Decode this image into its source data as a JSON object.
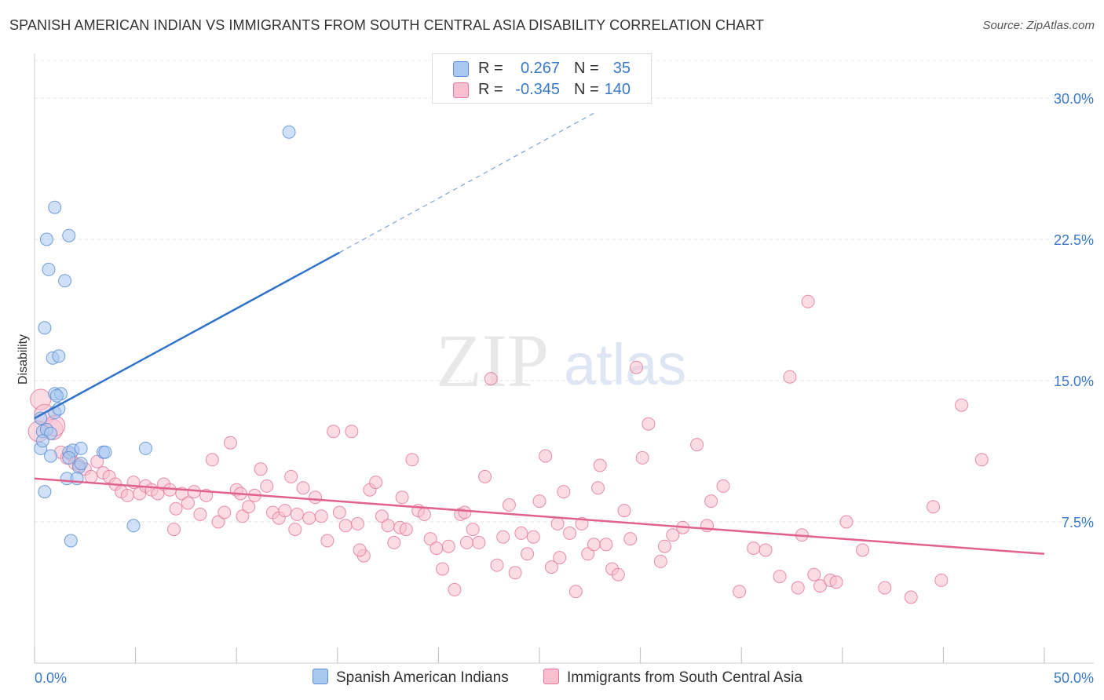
{
  "title": "SPANISH AMERICAN INDIAN VS IMMIGRANTS FROM SOUTH CENTRAL ASIA DISABILITY CORRELATION CHART",
  "source": "Source: ZipAtlas.com",
  "watermark": {
    "zip": "ZIP",
    "atlas": "atlas"
  },
  "legend": {
    "rows": [
      {
        "r_label": "R =",
        "r_value": "0.267",
        "n_label": "N =",
        "n_value": "35",
        "color": "#a9c8f0",
        "border": "#5b8fd6"
      },
      {
        "r_label": "R =",
        "r_value": "-0.345",
        "n_label": "N =",
        "n_value": "140",
        "color": "#f7bfd0",
        "border": "#e5799c"
      }
    ]
  },
  "bottom_legend": [
    {
      "label": "Spanish American Indians",
      "color": "#a9c8f0",
      "border": "#5b8fd6"
    },
    {
      "label": "Immigrants from South Central Asia",
      "color": "#f7bfd0",
      "border": "#e5799c"
    }
  ],
  "chart_data": {
    "type": "scatter",
    "title": "SPANISH AMERICAN INDIAN VS IMMIGRANTS FROM SOUTH CENTRAL ASIA DISABILITY CORRELATION CHART",
    "xlabel": "",
    "ylabel": "Disability",
    "xlim": [
      0,
      50
    ],
    "ylim": [
      0,
      32
    ],
    "x_tick_labels": [
      "0.0%",
      "50.0%"
    ],
    "y_ticks": [
      7.5,
      15.0,
      22.5,
      30.0
    ],
    "y_tick_labels": [
      "7.5%",
      "15.0%",
      "22.5%",
      "30.0%"
    ],
    "grid": true,
    "legend_position": "top-center",
    "series": [
      {
        "name": "Spanish American Indians",
        "color": "#5b8fd6",
        "fill": "#a9c8f0",
        "trend": {
          "x": [
            0,
            15.1
          ],
          "y": [
            13.0,
            21.8
          ],
          "dashed_extension_to": [
            27.7,
            29.2
          ]
        },
        "points": [
          [
            12.6,
            28.2
          ],
          [
            1.0,
            24.2
          ],
          [
            0.6,
            22.5
          ],
          [
            1.7,
            22.7
          ],
          [
            0.7,
            20.9
          ],
          [
            1.5,
            20.3
          ],
          [
            0.5,
            17.8
          ],
          [
            0.9,
            16.2
          ],
          [
            1.2,
            16.3
          ],
          [
            1.0,
            14.3
          ],
          [
            1.3,
            14.3
          ],
          [
            1.1,
            14.2
          ],
          [
            0.3,
            13.0
          ],
          [
            1.0,
            13.3
          ],
          [
            1.2,
            13.5
          ],
          [
            0.4,
            12.3
          ],
          [
            0.6,
            12.4
          ],
          [
            0.8,
            12.2
          ],
          [
            0.3,
            11.4
          ],
          [
            0.8,
            11.0
          ],
          [
            1.7,
            11.2
          ],
          [
            1.9,
            11.3
          ],
          [
            2.3,
            11.4
          ],
          [
            3.4,
            11.2
          ],
          [
            3.5,
            11.2
          ],
          [
            5.5,
            11.4
          ],
          [
            1.7,
            10.9
          ],
          [
            2.2,
            10.4
          ],
          [
            2.3,
            10.6
          ],
          [
            1.6,
            9.8
          ],
          [
            2.1,
            9.8
          ],
          [
            0.5,
            9.1
          ],
          [
            4.9,
            7.3
          ],
          [
            1.8,
            6.5
          ],
          [
            0.4,
            11.8
          ]
        ]
      },
      {
        "name": "Immigrants from South Central Asia",
        "color": "#e5799c",
        "fill": "#f7bfd0",
        "trend": {
          "x": [
            0,
            50
          ],
          "y": [
            9.8,
            5.8
          ]
        },
        "points": [
          [
            0.3,
            14.0
          ],
          [
            0.5,
            13.2
          ],
          [
            0.9,
            12.4
          ],
          [
            0.2,
            12.3
          ],
          [
            1.0,
            12.6
          ],
          [
            1.3,
            11.2
          ],
          [
            1.6,
            10.9
          ],
          [
            1.8,
            11.1
          ],
          [
            2.0,
            10.6
          ],
          [
            2.2,
            10.5
          ],
          [
            2.5,
            10.3
          ],
          [
            2.8,
            9.9
          ],
          [
            3.1,
            10.7
          ],
          [
            3.4,
            10.1
          ],
          [
            3.7,
            9.9
          ],
          [
            4.0,
            9.5
          ],
          [
            4.3,
            9.1
          ],
          [
            4.6,
            8.9
          ],
          [
            4.9,
            9.6
          ],
          [
            5.2,
            9.0
          ],
          [
            5.5,
            9.4
          ],
          [
            5.8,
            9.2
          ],
          [
            6.1,
            9.0
          ],
          [
            6.4,
            9.5
          ],
          [
            6.7,
            9.2
          ],
          [
            7.0,
            8.2
          ],
          [
            7.3,
            9.0
          ],
          [
            7.6,
            8.5
          ],
          [
            7.9,
            9.1
          ],
          [
            8.2,
            7.9
          ],
          [
            8.5,
            8.9
          ],
          [
            8.8,
            10.8
          ],
          [
            9.1,
            7.5
          ],
          [
            9.4,
            8.0
          ],
          [
            9.7,
            11.7
          ],
          [
            10.0,
            9.2
          ],
          [
            10.3,
            7.8
          ],
          [
            10.6,
            8.3
          ],
          [
            10.9,
            8.9
          ],
          [
            11.2,
            10.3
          ],
          [
            11.5,
            9.4
          ],
          [
            11.8,
            8.0
          ],
          [
            12.1,
            7.7
          ],
          [
            12.4,
            8.1
          ],
          [
            12.7,
            9.9
          ],
          [
            13.0,
            7.9
          ],
          [
            13.3,
            9.3
          ],
          [
            13.6,
            7.7
          ],
          [
            13.9,
            8.8
          ],
          [
            14.2,
            7.8
          ],
          [
            14.5,
            6.5
          ],
          [
            14.8,
            12.3
          ],
          [
            15.1,
            8.0
          ],
          [
            15.4,
            7.3
          ],
          [
            15.7,
            12.3
          ],
          [
            16.0,
            7.4
          ],
          [
            16.3,
            5.7
          ],
          [
            16.6,
            9.2
          ],
          [
            16.9,
            9.6
          ],
          [
            17.2,
            7.8
          ],
          [
            17.5,
            7.3
          ],
          [
            17.8,
            6.4
          ],
          [
            18.1,
            7.2
          ],
          [
            18.4,
            7.1
          ],
          [
            18.7,
            10.8
          ],
          [
            19.0,
            8.1
          ],
          [
            19.3,
            7.9
          ],
          [
            19.6,
            6.6
          ],
          [
            19.9,
            6.1
          ],
          [
            20.2,
            5.0
          ],
          [
            20.5,
            6.2
          ],
          [
            20.8,
            3.9
          ],
          [
            21.1,
            7.9
          ],
          [
            21.4,
            6.4
          ],
          [
            21.7,
            7.1
          ],
          [
            22.0,
            6.4
          ],
          [
            22.3,
            9.9
          ],
          [
            22.6,
            15.1
          ],
          [
            22.9,
            5.2
          ],
          [
            23.2,
            6.7
          ],
          [
            23.5,
            8.4
          ],
          [
            23.8,
            4.8
          ],
          [
            24.1,
            6.9
          ],
          [
            24.4,
            5.8
          ],
          [
            24.7,
            6.7
          ],
          [
            25.0,
            8.6
          ],
          [
            25.3,
            11.0
          ],
          [
            25.6,
            5.1
          ],
          [
            25.9,
            7.4
          ],
          [
            26.2,
            9.1
          ],
          [
            26.5,
            6.9
          ],
          [
            26.8,
            3.8
          ],
          [
            27.1,
            7.4
          ],
          [
            27.4,
            5.8
          ],
          [
            27.7,
            6.3
          ],
          [
            28.0,
            10.5
          ],
          [
            28.3,
            6.3
          ],
          [
            28.6,
            5.0
          ],
          [
            28.9,
            4.7
          ],
          [
            29.2,
            8.1
          ],
          [
            29.5,
            6.6
          ],
          [
            29.8,
            15.7
          ],
          [
            30.1,
            10.9
          ],
          [
            30.4,
            12.7
          ],
          [
            31.2,
            6.2
          ],
          [
            31.6,
            6.8
          ],
          [
            32.1,
            7.2
          ],
          [
            32.8,
            11.6
          ],
          [
            33.3,
            7.3
          ],
          [
            34.1,
            9.4
          ],
          [
            34.9,
            3.8
          ],
          [
            35.6,
            6.1
          ],
          [
            36.2,
            6.0
          ],
          [
            36.9,
            4.6
          ],
          [
            37.4,
            15.2
          ],
          [
            37.8,
            4.0
          ],
          [
            38.3,
            19.2
          ],
          [
            38.6,
            4.7
          ],
          [
            38.9,
            4.1
          ],
          [
            39.4,
            4.4
          ],
          [
            39.7,
            4.3
          ],
          [
            40.2,
            7.5
          ],
          [
            41.0,
            6.0
          ],
          [
            42.1,
            4.0
          ],
          [
            43.4,
            3.5
          ],
          [
            44.5,
            8.3
          ],
          [
            45.9,
            13.7
          ],
          [
            46.9,
            10.8
          ],
          [
            10.2,
            9.0
          ],
          [
            12.9,
            7.1
          ],
          [
            16.1,
            6.0
          ],
          [
            21.3,
            8.0
          ],
          [
            26.0,
            5.6
          ],
          [
            27.9,
            9.3
          ],
          [
            33.5,
            8.6
          ],
          [
            38.0,
            6.8
          ],
          [
            44.9,
            4.4
          ],
          [
            31.0,
            5.4
          ],
          [
            18.2,
            8.8
          ],
          [
            6.9,
            7.1
          ]
        ]
      }
    ]
  }
}
